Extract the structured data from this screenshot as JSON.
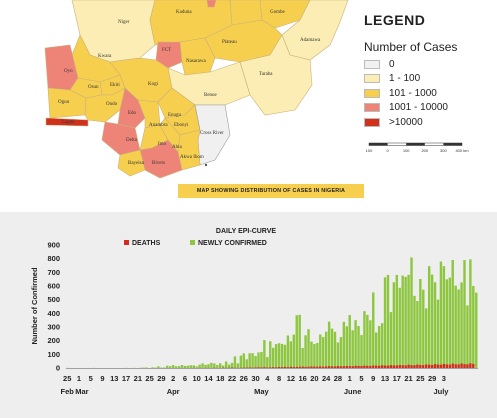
{
  "map": {
    "caption": "MAP SHOWING DISTRIBUTION OF CASES IN NIGERIA",
    "legend_title": "LEGEND",
    "legend_subtitle": "Number of Cases",
    "legend_items": [
      {
        "label": "0",
        "color": "#f0f0f0"
      },
      {
        "label": "1 - 100",
        "color": "#fbedb3"
      },
      {
        "label": "101 - 1000",
        "color": "#f7cf4f"
      },
      {
        "label": "1001 - 10000",
        "color": "#ee8477"
      },
      {
        "label": ">10000",
        "color": "#d0311d"
      }
    ],
    "scale_labels": [
      "100",
      "0",
      "100",
      "200",
      "300",
      "400 km"
    ],
    "states": [
      "Kaduna",
      "Gombe",
      "Niger",
      "FCT",
      "Plateau",
      "Adamawa",
      "Kwara",
      "Nasarawa",
      "Oyo",
      "Taraba",
      "Osun",
      "Ekiti",
      "Kogi",
      "Ogun",
      "Ondo",
      "Benue",
      "Lagos",
      "Edo",
      "Enugu",
      "Anambra",
      "Ebonyi",
      "Cross River",
      "Delta",
      "Imo",
      "Abia",
      "Akwa Ibom",
      "Bayelsa",
      "Rivers"
    ]
  },
  "chart_data": {
    "type": "bar",
    "title": "DAILY EPI-CURVE",
    "ylabel": "Number of Confirmed",
    "xlabel": "",
    "ylim": [
      0,
      900
    ],
    "yticks": [
      0,
      100,
      200,
      300,
      400,
      500,
      600,
      700,
      800,
      900
    ],
    "x_tick_labels": [
      "25",
      "1",
      "5",
      "9",
      "13",
      "17",
      "21",
      "25",
      "29",
      "2",
      "6",
      "10",
      "14",
      "18",
      "22",
      "26",
      "30",
      "4",
      "8",
      "12",
      "16",
      "20",
      "24",
      "28",
      "1",
      "5",
      "9",
      "13",
      "17",
      "21",
      "25",
      "29",
      "3"
    ],
    "months": [
      "Feb",
      "Mar",
      "Apr",
      "May",
      "June",
      "July"
    ],
    "start_date": "2020-02-25",
    "series": [
      {
        "name": "DEATHS",
        "color": "#d52b1e",
        "values": [
          0,
          0,
          0,
          0,
          0,
          0,
          0,
          0,
          0,
          0,
          0,
          0,
          0,
          0,
          0,
          0,
          0,
          0,
          0,
          0,
          0,
          0,
          0,
          0,
          0,
          0,
          0,
          0,
          0,
          0,
          0,
          0,
          0,
          0,
          0,
          0,
          0,
          0,
          0,
          0,
          1,
          0,
          0,
          1,
          0,
          1,
          0,
          1,
          1,
          0,
          2,
          0,
          1,
          2,
          1,
          2,
          3,
          2,
          1,
          2,
          3,
          3,
          4,
          3,
          4,
          5,
          4,
          6,
          4,
          5,
          6,
          5,
          7,
          6,
          8,
          6,
          9,
          7,
          8,
          9,
          10,
          8,
          9,
          11,
          10,
          9,
          12,
          10,
          11,
          13,
          12,
          11,
          14,
          12,
          13,
          15,
          14,
          13,
          16,
          15,
          14,
          17,
          16,
          15,
          18,
          17,
          16,
          20,
          18,
          17,
          21,
          19,
          18,
          22,
          20,
          19,
          24,
          21,
          20,
          25,
          22,
          21,
          26,
          24,
          22,
          28,
          25,
          24,
          30,
          26,
          25,
          32,
          27,
          26,
          33,
          28,
          27,
          34,
          30
        ]
      },
      {
        "name": "NEWLY CONFIRMED",
        "color": "#8dc63f",
        "values": [
          1,
          0,
          0,
          0,
          0,
          0,
          0,
          0,
          0,
          1,
          0,
          0,
          0,
          0,
          0,
          0,
          0,
          0,
          0,
          0,
          1,
          0,
          0,
          1,
          0,
          2,
          3,
          4,
          0,
          5,
          3,
          12,
          3,
          4,
          17,
          13,
          21,
          12,
          14,
          22,
          15,
          17,
          20,
          20,
          12,
          24,
          34,
          23,
          28,
          38,
          33,
          22,
          35,
          18,
          48,
          25,
          38,
          85,
          34,
          91,
          107,
          64,
          108,
          108,
          87,
          114,
          117,
          204,
          80,
          196,
          148,
          175,
          181,
          176,
          170,
          238,
          195,
          244,
          386,
          389,
          146,
          239,
          284,
          193,
          176,
          183,
          245,
          226,
          266,
          339,
          288,
          265,
          187,
          226,
          338,
          305,
          387,
          276,
          350,
          307,
          241,
          416,
          389,
          349,
          553,
          260,
          307,
          328,
          663,
          681,
          409,
          627,
          681,
          587,
          676,
          667,
          682,
          809,
          528,
          490,
          651,
          573,
          436,
          745,
          684,
          627,
          500,
          779,
          745,
          649,
          661,
          790,
          603,
          575,
          626,
          790,
          458,
          795,
          600,
          551
        ]
      }
    ]
  }
}
